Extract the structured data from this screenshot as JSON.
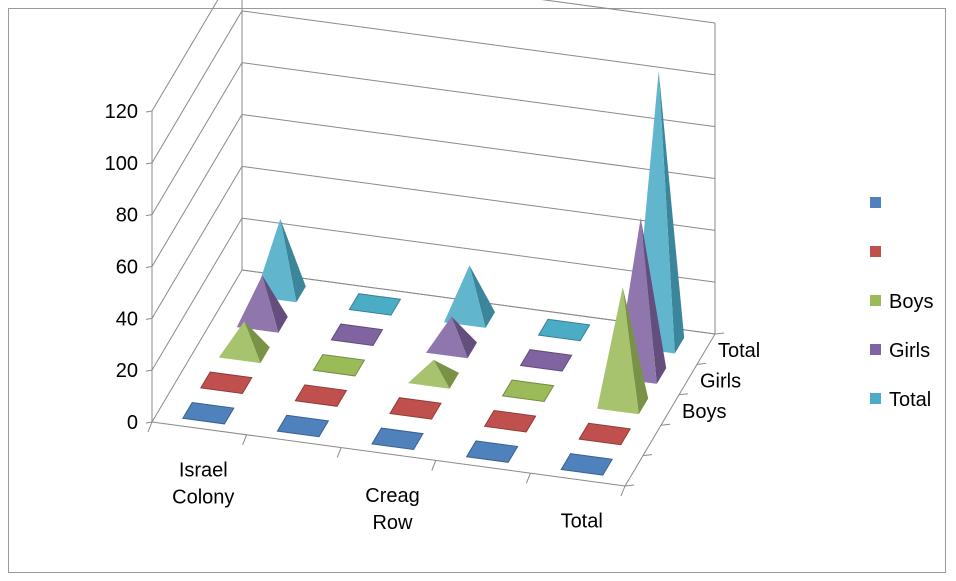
{
  "chart_data": {
    "type": "bar",
    "subtype": "3d-pyramid",
    "title": "",
    "xlabel": "",
    "ylabel": "",
    "ylim": [
      0,
      120
    ],
    "yticks": [
      "0",
      "20",
      "40",
      "60",
      "80",
      "100",
      "120"
    ],
    "categories": [
      [
        "Israel",
        "Colony"
      ],
      [
        "",
        ""
      ],
      [
        "Creag",
        "Row"
      ],
      [
        "",
        ""
      ],
      [
        "Total"
      ]
    ],
    "depth_labels": [
      "Boys",
      "Girls",
      "Total"
    ],
    "grid": true,
    "legend_position": "right",
    "series": [
      {
        "name": "",
        "color": "#4f81bd",
        "values": [
          0,
          0,
          0,
          0,
          0
        ]
      },
      {
        "name": "",
        "color": "#c0504d",
        "values": [
          0,
          0,
          0,
          0,
          0
        ]
      },
      {
        "name": "Boys",
        "color": "#9bbb59",
        "values": [
          12,
          0,
          7,
          0,
          45
        ]
      },
      {
        "name": "Girls",
        "color": "#8064a2",
        "values": [
          18,
          0,
          12,
          0,
          60
        ]
      },
      {
        "name": "Total",
        "color": "#4bacc6",
        "values": [
          28,
          0,
          20,
          0,
          105
        ]
      }
    ],
    "legend": [
      {
        "label": "",
        "color": "#4f81bd"
      },
      {
        "label": "",
        "color": "#c0504d"
      },
      {
        "label": "Boys",
        "color": "#9bbb59"
      },
      {
        "label": "Girls",
        "color": "#8064a2"
      },
      {
        "label": "Total",
        "color": "#4bacc6"
      }
    ]
  }
}
